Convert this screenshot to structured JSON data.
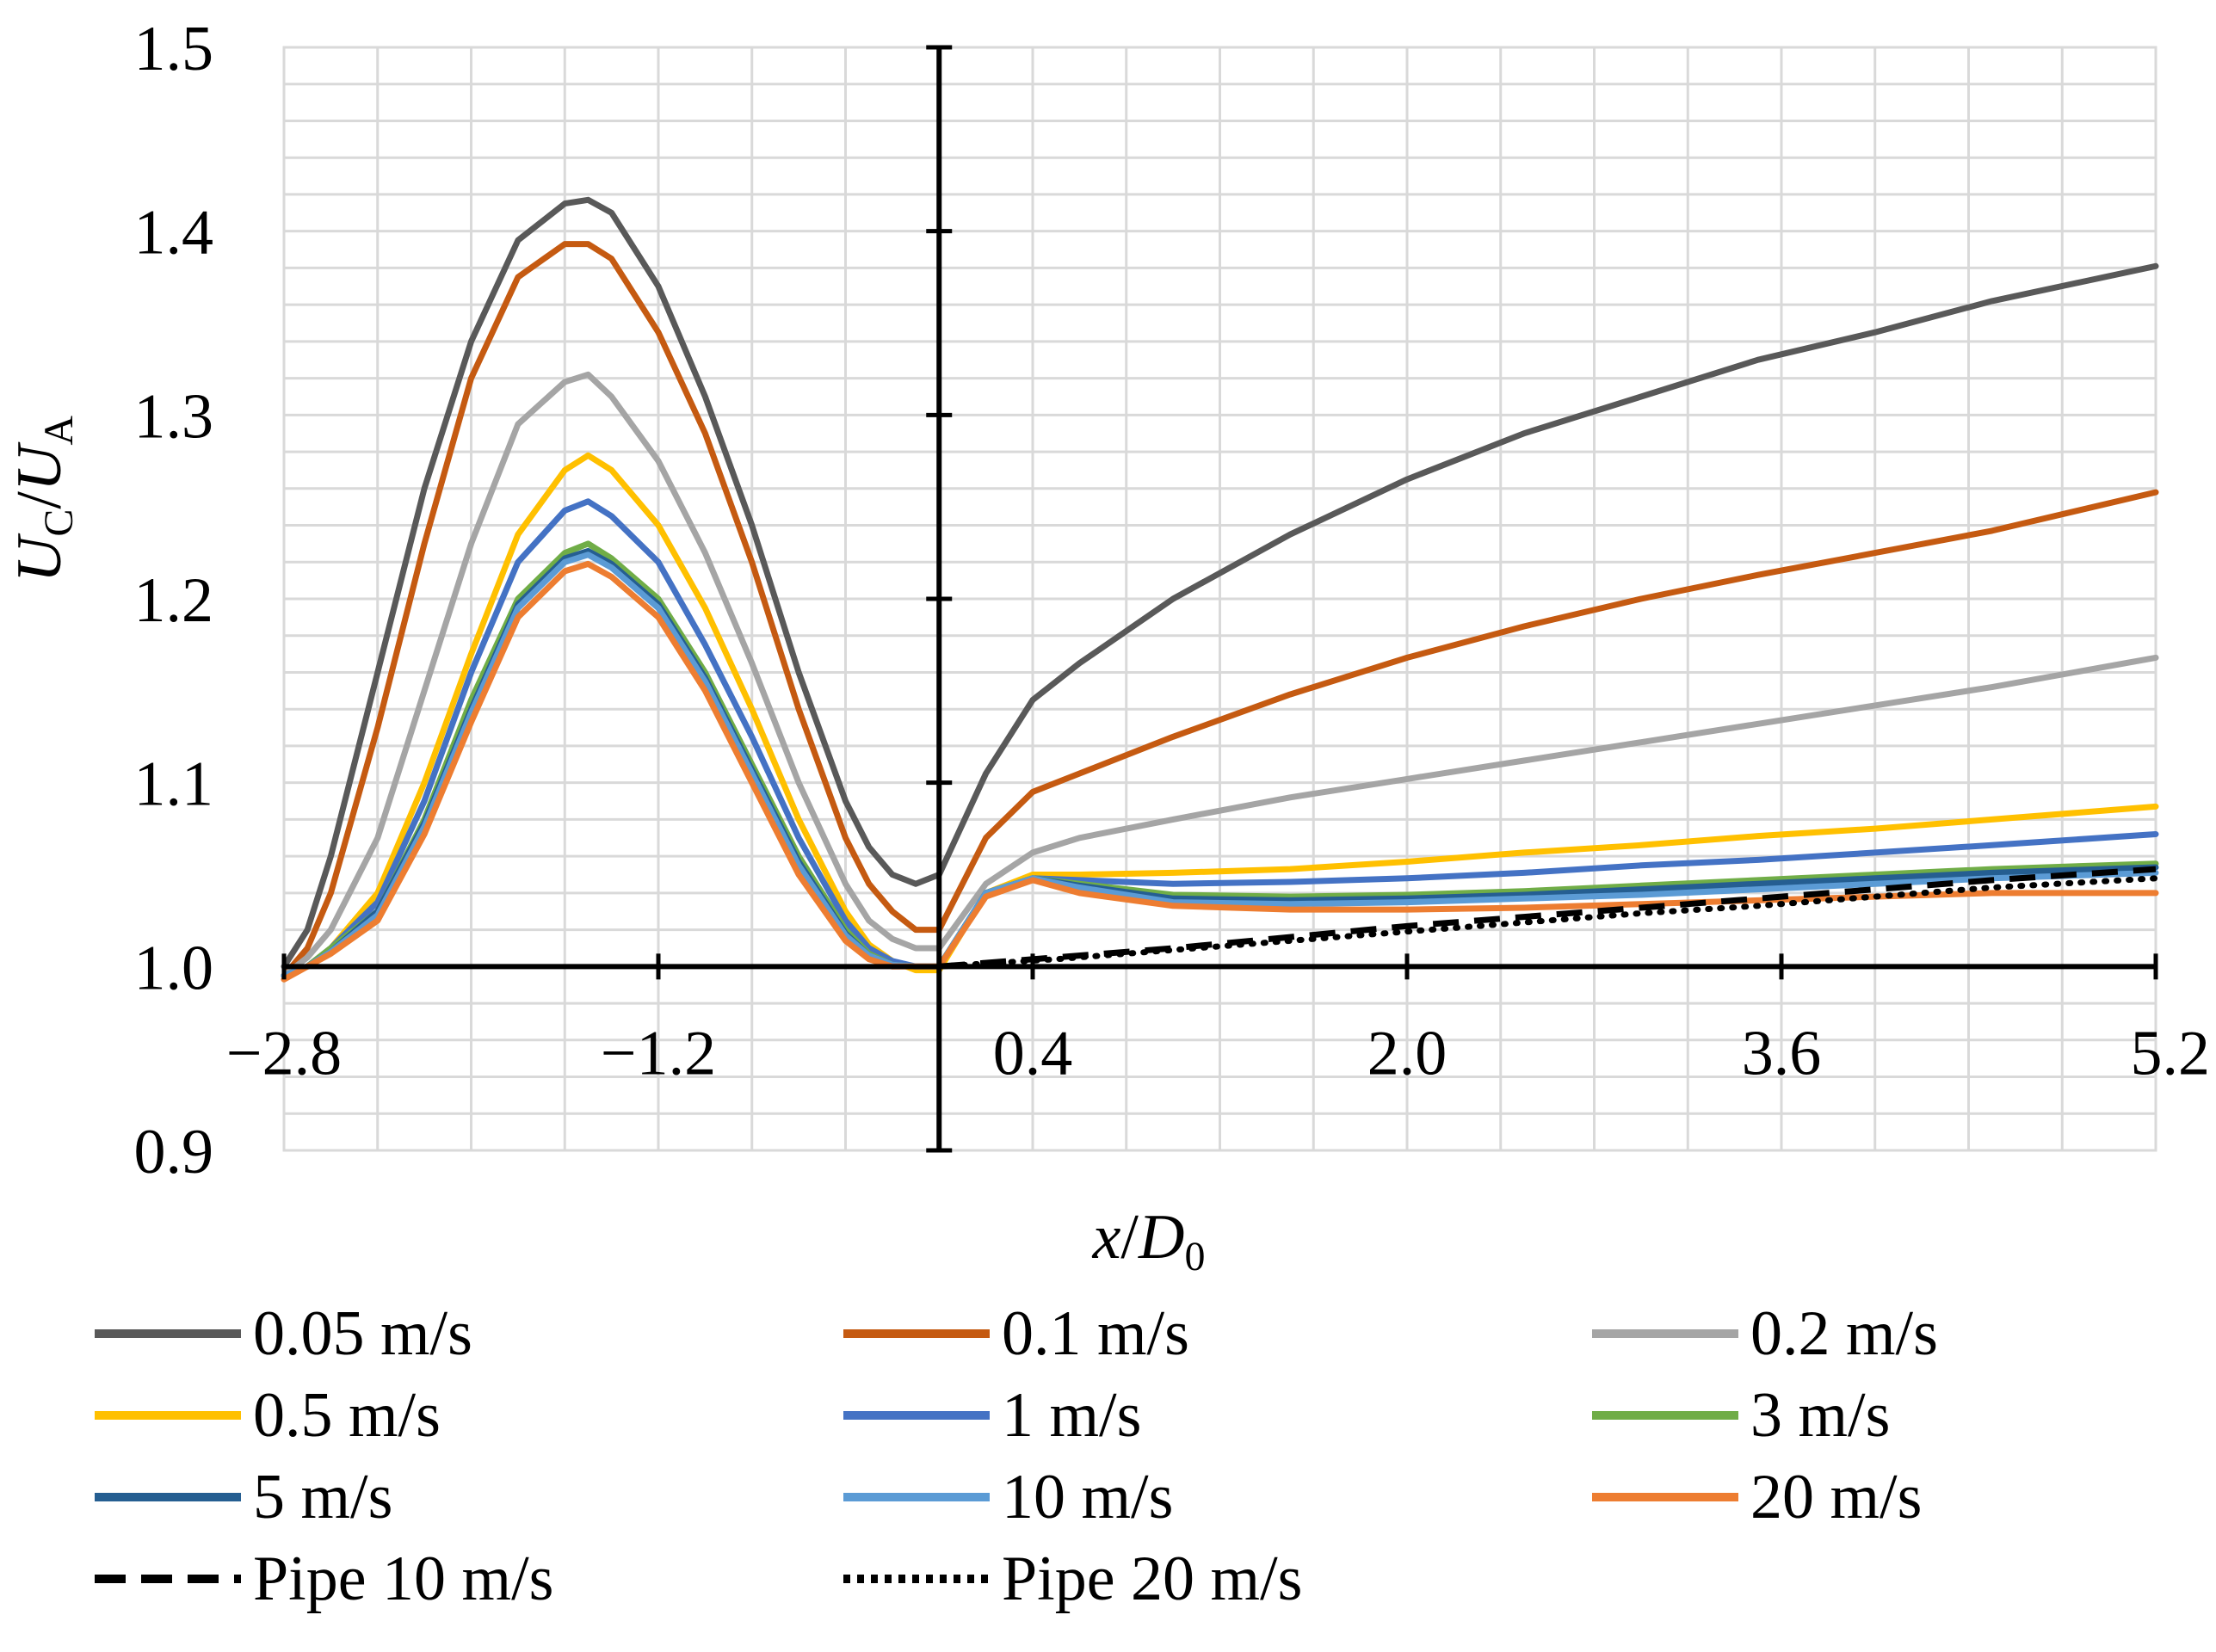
{
  "chart_data": {
    "type": "line",
    "xlabel": {
      "italic_var": "x",
      "sep": "/",
      "italic_var2": "D",
      "sub": "0"
    },
    "ylabel": {
      "v1": "U",
      "s1": "C",
      "sep": "/",
      "v2": "U",
      "s2": "A"
    },
    "xlim": [
      -2.8,
      5.2
    ],
    "ylim": [
      0.9,
      1.5
    ],
    "x_ticks": [
      -2.8,
      -1.2,
      0.4,
      2.0,
      3.6,
      5.2
    ],
    "x_tick_labels": [
      "−2.8",
      "−1.2",
      "0.4",
      "2.0",
      "3.6",
      "5.2"
    ],
    "y_ticks": [
      0.9,
      1.0,
      1.1,
      1.2,
      1.3,
      1.4,
      1.5
    ],
    "y_tick_labels": [
      "0.9",
      "1.0",
      "1.1",
      "1.2",
      "1.3",
      "1.4",
      "1.5"
    ],
    "grid": true,
    "legend_position": "bottom",
    "series": [
      {
        "name": "0.05 m/s",
        "color": "#595959",
        "dash": "solid",
        "x": [
          -2.8,
          -2.7,
          -2.6,
          -2.4,
          -2.2,
          -2.0,
          -1.8,
          -1.6,
          -1.5,
          -1.4,
          -1.2,
          -1.0,
          -0.8,
          -0.6,
          -0.4,
          -0.3,
          -0.2,
          -0.1,
          0.0,
          0.2,
          0.4,
          0.6,
          1.0,
          1.5,
          2.0,
          2.5,
          3.0,
          3.5,
          4.0,
          4.5,
          5.2
        ],
        "y": [
          1.0,
          1.02,
          1.06,
          1.16,
          1.26,
          1.34,
          1.395,
          1.415,
          1.417,
          1.41,
          1.37,
          1.31,
          1.24,
          1.16,
          1.09,
          1.065,
          1.05,
          1.045,
          1.05,
          1.105,
          1.145,
          1.165,
          1.2,
          1.235,
          1.265,
          1.29,
          1.31,
          1.33,
          1.345,
          1.362,
          1.381
        ]
      },
      {
        "name": "0.1 m/s",
        "color": "#C55A11",
        "dash": "solid",
        "x": [
          -2.8,
          -2.7,
          -2.6,
          -2.4,
          -2.2,
          -2.0,
          -1.8,
          -1.6,
          -1.5,
          -1.4,
          -1.2,
          -1.0,
          -0.8,
          -0.6,
          -0.4,
          -0.3,
          -0.2,
          -0.1,
          0.0,
          0.2,
          0.4,
          0.6,
          1.0,
          1.5,
          2.0,
          2.5,
          3.0,
          3.5,
          4.0,
          4.5,
          5.2
        ],
        "y": [
          0.995,
          1.01,
          1.04,
          1.13,
          1.23,
          1.32,
          1.375,
          1.393,
          1.393,
          1.385,
          1.345,
          1.29,
          1.22,
          1.14,
          1.07,
          1.045,
          1.03,
          1.02,
          1.02,
          1.07,
          1.095,
          1.105,
          1.125,
          1.148,
          1.168,
          1.185,
          1.2,
          1.213,
          1.225,
          1.237,
          1.258
        ]
      },
      {
        "name": "0.2 m/s",
        "color": "#A5A5A5",
        "dash": "solid",
        "x": [
          -2.8,
          -2.7,
          -2.6,
          -2.4,
          -2.2,
          -2.0,
          -1.8,
          -1.6,
          -1.5,
          -1.4,
          -1.2,
          -1.0,
          -0.8,
          -0.6,
          -0.4,
          -0.3,
          -0.2,
          -0.1,
          0.0,
          0.2,
          0.4,
          0.6,
          1.0,
          1.5,
          2.0,
          2.5,
          3.0,
          3.5,
          4.0,
          4.5,
          5.2
        ],
        "y": [
          0.995,
          1.005,
          1.02,
          1.07,
          1.15,
          1.23,
          1.295,
          1.318,
          1.322,
          1.31,
          1.275,
          1.225,
          1.165,
          1.1,
          1.045,
          1.025,
          1.015,
          1.01,
          1.01,
          1.045,
          1.062,
          1.07,
          1.08,
          1.092,
          1.102,
          1.112,
          1.122,
          1.132,
          1.142,
          1.152,
          1.168
        ]
      },
      {
        "name": "0.5 m/s",
        "color": "#FFC000",
        "dash": "solid",
        "x": [
          -2.8,
          -2.7,
          -2.6,
          -2.4,
          -2.2,
          -2.0,
          -1.8,
          -1.6,
          -1.5,
          -1.4,
          -1.2,
          -1.0,
          -0.8,
          -0.6,
          -0.4,
          -0.3,
          -0.2,
          -0.1,
          0.0,
          0.2,
          0.4,
          0.6,
          1.0,
          1.5,
          2.0,
          2.5,
          3.0,
          3.5,
          4.0,
          4.5,
          5.2
        ],
        "y": [
          0.995,
          1.0,
          1.01,
          1.04,
          1.1,
          1.17,
          1.235,
          1.27,
          1.278,
          1.27,
          1.24,
          1.195,
          1.14,
          1.08,
          1.03,
          1.012,
          1.003,
          0.998,
          0.998,
          1.04,
          1.05,
          1.05,
          1.051,
          1.053,
          1.057,
          1.062,
          1.066,
          1.071,
          1.075,
          1.08,
          1.087
        ]
      },
      {
        "name": "1 m/s",
        "color": "#4472C4",
        "dash": "solid",
        "x": [
          -2.8,
          -2.7,
          -2.6,
          -2.4,
          -2.2,
          -2.0,
          -1.8,
          -1.6,
          -1.5,
          -1.4,
          -1.2,
          -1.0,
          -0.8,
          -0.6,
          -0.4,
          -0.3,
          -0.2,
          -0.1,
          0.0,
          0.2,
          0.4,
          0.6,
          1.0,
          1.5,
          2.0,
          2.5,
          3.0,
          3.5,
          4.0,
          4.5,
          5.2
        ],
        "y": [
          0.995,
          1.0,
          1.01,
          1.035,
          1.09,
          1.16,
          1.22,
          1.248,
          1.253,
          1.245,
          1.22,
          1.175,
          1.125,
          1.07,
          1.025,
          1.01,
          1.003,
          1.0,
          1.0,
          1.04,
          1.048,
          1.047,
          1.045,
          1.046,
          1.048,
          1.051,
          1.055,
          1.058,
          1.062,
          1.066,
          1.072
        ]
      },
      {
        "name": "3 m/s",
        "color": "#70AD47",
        "dash": "solid",
        "x": [
          -2.8,
          -2.7,
          -2.6,
          -2.4,
          -2.2,
          -2.0,
          -1.8,
          -1.6,
          -1.5,
          -1.4,
          -1.2,
          -1.0,
          -0.8,
          -0.6,
          -0.4,
          -0.3,
          -0.2,
          -0.1,
          0.0,
          0.2,
          0.4,
          0.6,
          1.0,
          1.5,
          2.0,
          2.5,
          3.0,
          3.5,
          4.0,
          4.5,
          5.2
        ],
        "y": [
          0.995,
          1.0,
          1.01,
          1.03,
          1.08,
          1.145,
          1.2,
          1.225,
          1.23,
          1.222,
          1.2,
          1.16,
          1.11,
          1.06,
          1.02,
          1.007,
          1.001,
          1.0,
          1.0,
          1.04,
          1.048,
          1.045,
          1.039,
          1.038,
          1.039,
          1.041,
          1.044,
          1.047,
          1.05,
          1.053,
          1.056
        ]
      },
      {
        "name": "5 m/s",
        "color": "#255E91",
        "dash": "solid",
        "x": [
          -2.8,
          -2.7,
          -2.6,
          -2.4,
          -2.2,
          -2.0,
          -1.8,
          -1.6,
          -1.5,
          -1.4,
          -1.2,
          -1.0,
          -0.8,
          -0.6,
          -0.4,
          -0.3,
          -0.2,
          -0.1,
          0.0,
          0.2,
          0.4,
          0.6,
          1.0,
          1.5,
          2.0,
          2.5,
          3.0,
          3.5,
          4.0,
          4.5,
          5.2
        ],
        "y": [
          0.995,
          1.0,
          1.008,
          1.03,
          1.078,
          1.14,
          1.197,
          1.222,
          1.226,
          1.219,
          1.197,
          1.157,
          1.107,
          1.057,
          1.018,
          1.006,
          1.001,
          1.0,
          1.0,
          1.04,
          1.048,
          1.044,
          1.037,
          1.036,
          1.037,
          1.039,
          1.042,
          1.045,
          1.048,
          1.051,
          1.054
        ]
      },
      {
        "name": "10 m/s",
        "color": "#5B9BD5",
        "dash": "solid",
        "x": [
          -2.8,
          -2.7,
          -2.6,
          -2.4,
          -2.2,
          -2.0,
          -1.8,
          -1.6,
          -1.5,
          -1.4,
          -1.2,
          -1.0,
          -0.8,
          -0.6,
          -0.4,
          -0.3,
          -0.2,
          -0.1,
          0.0,
          0.2,
          0.4,
          0.6,
          1.0,
          1.5,
          2.0,
          2.5,
          3.0,
          3.5,
          4.0,
          4.5,
          5.2
        ],
        "y": [
          0.995,
          1.0,
          1.008,
          1.028,
          1.076,
          1.138,
          1.195,
          1.22,
          1.224,
          1.217,
          1.195,
          1.155,
          1.105,
          1.055,
          1.017,
          1.006,
          1.001,
          1.0,
          1.0,
          1.04,
          1.048,
          1.043,
          1.035,
          1.034,
          1.035,
          1.037,
          1.039,
          1.042,
          1.045,
          1.048,
          1.051
        ]
      },
      {
        "name": "20 m/s",
        "color": "#ED7D31",
        "dash": "solid",
        "x": [
          -2.8,
          -2.7,
          -2.6,
          -2.4,
          -2.2,
          -2.0,
          -1.8,
          -1.6,
          -1.5,
          -1.4,
          -1.2,
          -1.0,
          -0.8,
          -0.6,
          -0.4,
          -0.3,
          -0.2,
          -0.1,
          0.0,
          0.2,
          0.4,
          0.6,
          1.0,
          1.5,
          2.0,
          2.5,
          3.0,
          3.5,
          4.0,
          4.5,
          5.2
        ],
        "y": [
          0.993,
          1.0,
          1.007,
          1.025,
          1.072,
          1.133,
          1.19,
          1.215,
          1.219,
          1.212,
          1.19,
          1.15,
          1.1,
          1.05,
          1.014,
          1.004,
          1.0,
          1.0,
          1.0,
          1.038,
          1.047,
          1.04,
          1.033,
          1.031,
          1.031,
          1.032,
          1.034,
          1.036,
          1.038,
          1.04,
          1.04
        ]
      },
      {
        "name": "Pipe 10 m/s",
        "color": "#000000",
        "dash": "dashed",
        "x": [
          0.0,
          0.5,
          1.0,
          1.5,
          2.0,
          2.5,
          3.0,
          3.5,
          4.0,
          4.5,
          5.2
        ],
        "y": [
          1.0,
          1.005,
          1.01,
          1.016,
          1.022,
          1.027,
          1.032,
          1.037,
          1.042,
          1.047,
          1.053
        ]
      },
      {
        "name": "Pipe 20 m/s",
        "color": "#000000",
        "dash": "dotted",
        "x": [
          0.0,
          0.5,
          1.0,
          1.5,
          2.0,
          2.5,
          3.0,
          3.5,
          4.0,
          4.5,
          5.2
        ],
        "y": [
          1.0,
          1.004,
          1.009,
          1.014,
          1.019,
          1.024,
          1.029,
          1.033,
          1.038,
          1.043,
          1.048
        ]
      }
    ]
  }
}
